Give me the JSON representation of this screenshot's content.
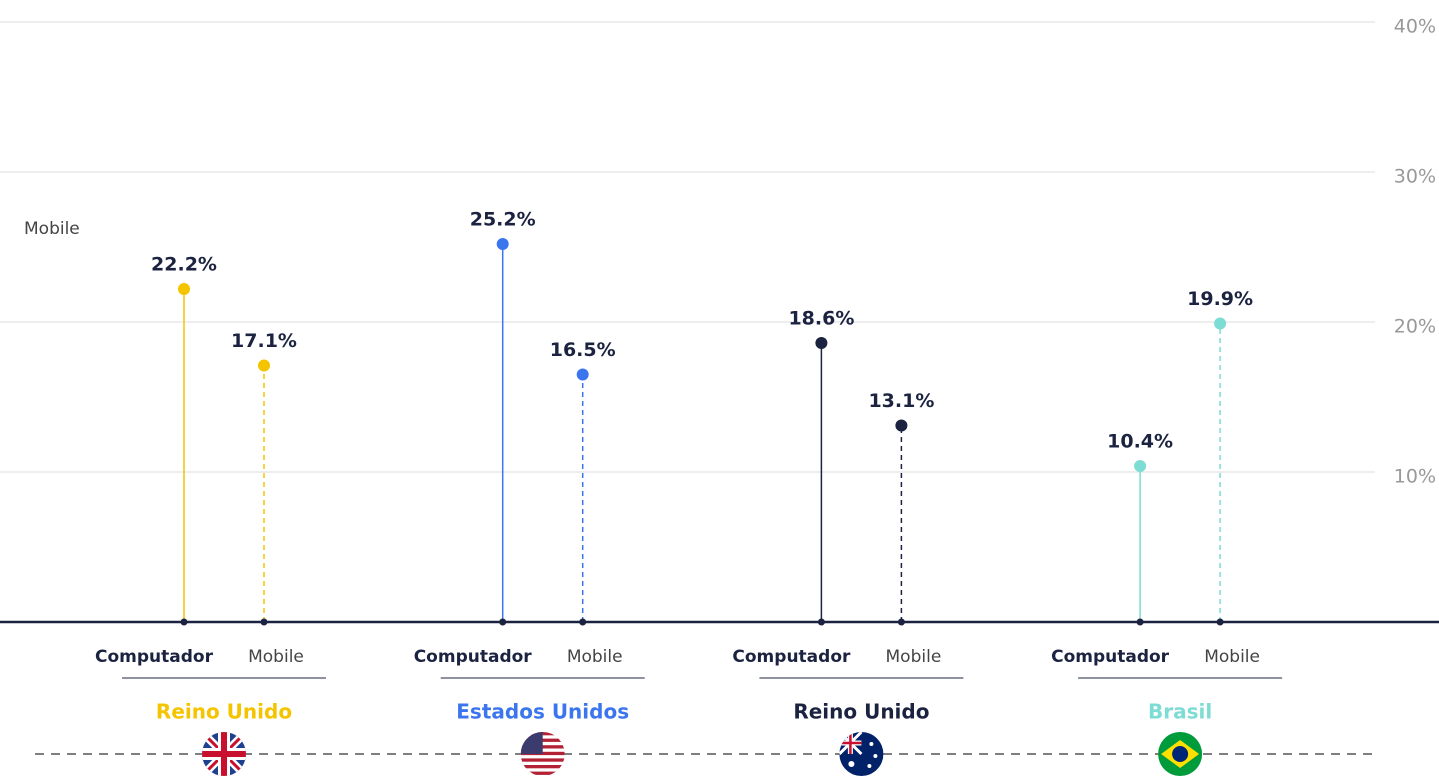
{
  "chart_data": {
    "type": "lollipop",
    "legend_label": "Mobile",
    "ylim": [
      0,
      40
    ],
    "yticks": [
      {
        "value": 10,
        "label": "10%"
      },
      {
        "value": 20,
        "label": "20%"
      },
      {
        "value": 30,
        "label": "30%"
      },
      {
        "value": 40,
        "label": "40%"
      }
    ],
    "grid": true,
    "series": [
      {
        "name": "Reino Unido",
        "color": "#f5c400",
        "categories": [
          "Computador",
          "Mobile"
        ],
        "values": [
          22.2,
          17.1
        ],
        "value_labels": [
          "22.2%",
          "17.1%"
        ]
      },
      {
        "name": "Estados Unidos",
        "color": "#3b76ef",
        "categories": [
          "Computador",
          "Mobile"
        ],
        "values": [
          25.2,
          16.5
        ],
        "value_labels": [
          "25.2%",
          "16.5%"
        ]
      },
      {
        "name": "Reino Unido",
        "color": "#1b2340",
        "categories": [
          "Computador",
          "Mobile"
        ],
        "values": [
          18.6,
          13.1
        ],
        "value_labels": [
          "18.6%",
          "13.1%"
        ]
      },
      {
        "name": "Brasil",
        "color": "#7ddcd3",
        "categories": [
          "Computador",
          "Mobile"
        ],
        "values": [
          10.4,
          19.9
        ],
        "value_labels": [
          "10.4%",
          "19.9%"
        ]
      }
    ]
  }
}
